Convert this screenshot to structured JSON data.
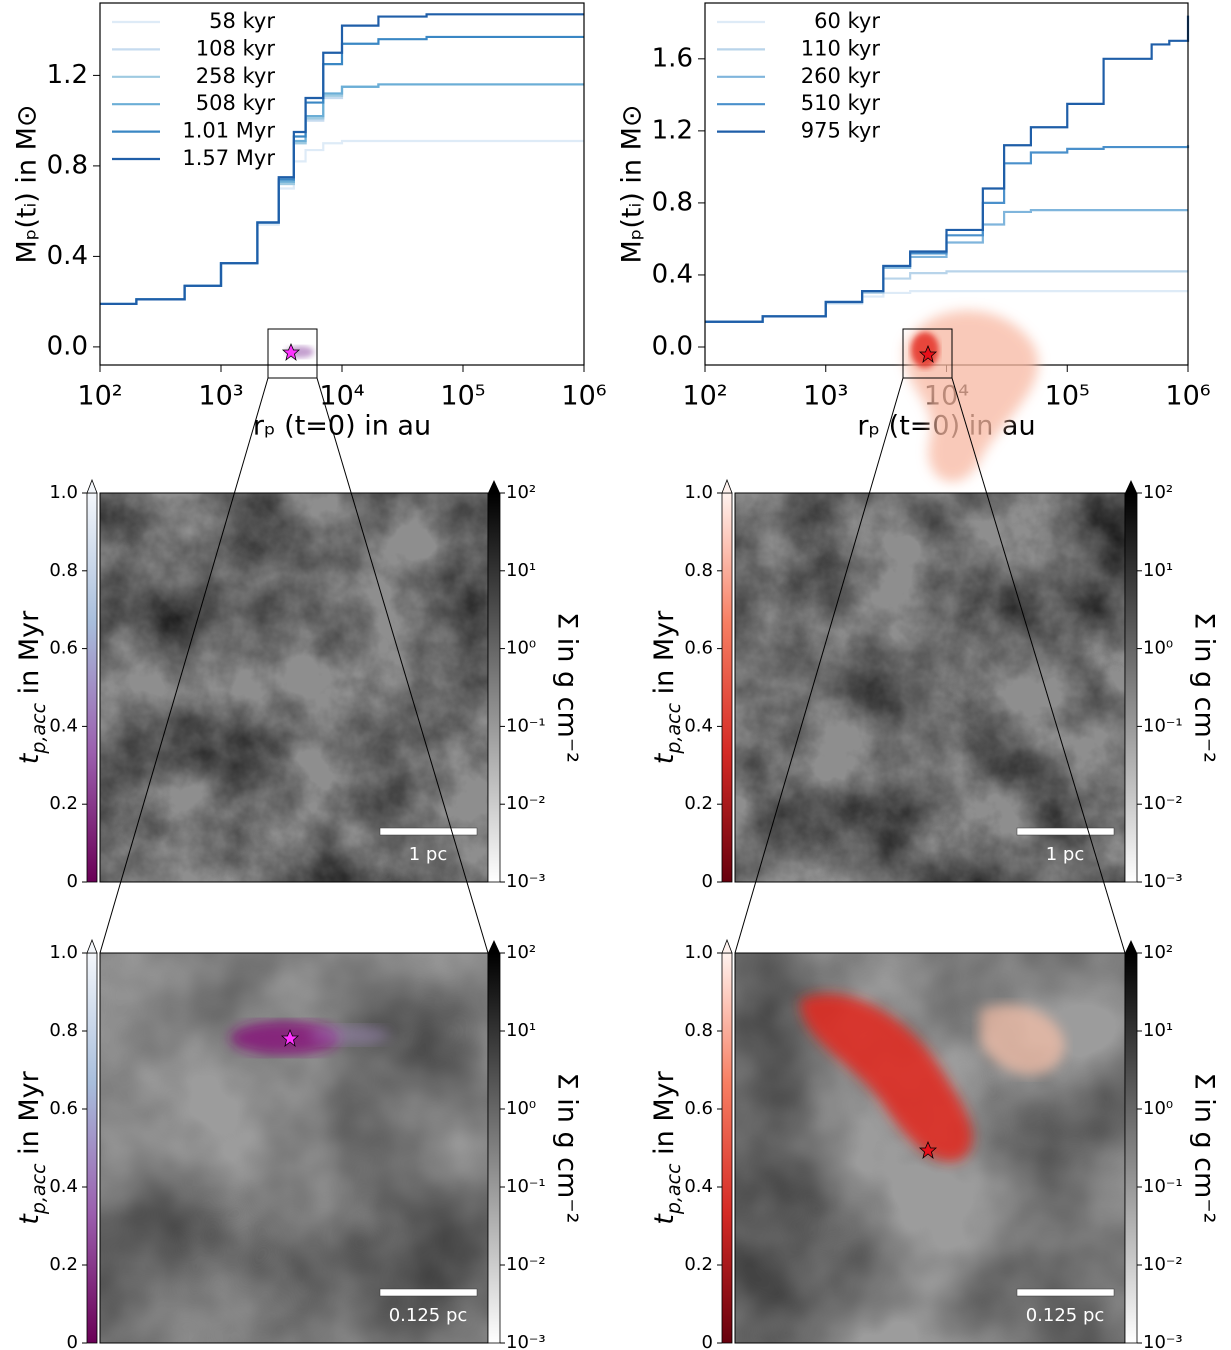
{
  "chart_data": [
    {
      "type": "line",
      "xlabel": "rₚ (t=0) in au",
      "ylabel": "Mₚ(tᵢ) in M⊙",
      "xscale": "log",
      "xlim": [
        100,
        1000000
      ],
      "xticks": [
        {
          "value": 100,
          "label": "10²"
        },
        {
          "value": 1000,
          "label": "10³"
        },
        {
          "value": 10000,
          "label": "10⁴"
        },
        {
          "value": 100000,
          "label": "10⁵"
        },
        {
          "value": 1000000,
          "label": "10⁶"
        }
      ],
      "ylim": [
        -0.08,
        1.52
      ],
      "yticks": [
        {
          "value": 0,
          "label": "0.0"
        },
        0.4,
        0.8,
        1.2
      ],
      "legend": "upper left",
      "x": [
        100,
        200,
        500,
        1000,
        2000,
        3000,
        4000,
        5000,
        7000,
        10000,
        20000,
        50000,
        100000,
        1000000
      ],
      "series": [
        {
          "name": "58 kyr",
          "color": "#deebf7",
          "values": [
            0.19,
            0.21,
            0.27,
            0.37,
            0.54,
            0.7,
            0.82,
            0.87,
            0.9,
            0.91,
            0.91,
            0.91,
            0.91,
            0.91
          ]
        },
        {
          "name": "108 kyr",
          "color": "#c6dbef",
          "values": [
            0.19,
            0.21,
            0.27,
            0.37,
            0.55,
            0.72,
            0.9,
            1.0,
            1.1,
            1.15,
            1.16,
            1.16,
            1.16,
            1.16
          ]
        },
        {
          "name": "258 kyr",
          "color": "#9ecae1",
          "values": [
            0.19,
            0.21,
            0.27,
            0.37,
            0.55,
            0.72,
            0.9,
            1.01,
            1.11,
            1.15,
            1.16,
            1.16,
            1.16,
            1.16
          ]
        },
        {
          "name": "508 kyr",
          "color": "#6baed6",
          "values": [
            0.19,
            0.21,
            0.27,
            0.37,
            0.55,
            0.73,
            0.91,
            1.02,
            1.12,
            1.15,
            1.16,
            1.16,
            1.16,
            1.16
          ]
        },
        {
          "name": "1.01 Myr",
          "color": "#3a87c4",
          "values": [
            0.19,
            0.21,
            0.27,
            0.37,
            0.55,
            0.74,
            0.93,
            1.08,
            1.25,
            1.34,
            1.36,
            1.37,
            1.37,
            1.37
          ]
        },
        {
          "name": "1.57 Myr",
          "color": "#1f5ea8",
          "values": [
            0.19,
            0.21,
            0.27,
            0.37,
            0.55,
            0.75,
            0.95,
            1.1,
            1.3,
            1.42,
            1.46,
            1.47,
            1.47,
            1.47
          ]
        }
      ]
    },
    {
      "type": "line",
      "xlabel": "rₚ (t=0) in au",
      "ylabel": "Mₚ(tᵢ) in M⊙",
      "xscale": "log",
      "xlim": [
        100,
        1000000
      ],
      "xticks": [
        {
          "value": 100,
          "label": "10²"
        },
        {
          "value": 1000,
          "label": "10³"
        },
        {
          "value": 10000,
          "label": "10⁴"
        },
        {
          "value": 100000,
          "label": "10⁵"
        },
        {
          "value": 1000000,
          "label": "10⁶"
        }
      ],
      "ylim": [
        -0.1,
        1.91
      ],
      "yticks": [
        {
          "value": 0,
          "label": "0.0"
        },
        0.4,
        0.8,
        1.2,
        1.6
      ],
      "legend": "upper left",
      "x": [
        100,
        300,
        1000,
        2000,
        3000,
        5000,
        10000,
        20000,
        30000,
        50000,
        100000,
        200000,
        500000,
        700000,
        1000000
      ],
      "series": [
        {
          "name": "60 kyr",
          "color": "#deebf7",
          "values": [
            0.14,
            0.17,
            0.24,
            0.28,
            0.3,
            0.31,
            0.31,
            0.31,
            0.31,
            0.31,
            0.31,
            0.31,
            0.31,
            0.31,
            0.31
          ]
        },
        {
          "name": "110 kyr",
          "color": "#b8d4ea",
          "values": [
            0.14,
            0.17,
            0.25,
            0.3,
            0.38,
            0.41,
            0.42,
            0.42,
            0.42,
            0.42,
            0.42,
            0.42,
            0.42,
            0.42,
            0.42
          ]
        },
        {
          "name": "260 kyr",
          "color": "#7fb5dc",
          "values": [
            0.14,
            0.17,
            0.25,
            0.31,
            0.44,
            0.5,
            0.58,
            0.68,
            0.75,
            0.76,
            0.76,
            0.76,
            0.76,
            0.76,
            0.76
          ]
        },
        {
          "name": "510 kyr",
          "color": "#4a90cb",
          "values": [
            0.14,
            0.17,
            0.25,
            0.31,
            0.45,
            0.52,
            0.62,
            0.8,
            1.02,
            1.08,
            1.1,
            1.11,
            1.11,
            1.11,
            1.12
          ]
        },
        {
          "name": "975 kyr",
          "color": "#1f5ea8",
          "values": [
            0.14,
            0.17,
            0.25,
            0.31,
            0.45,
            0.53,
            0.65,
            0.88,
            1.12,
            1.22,
            1.35,
            1.6,
            1.68,
            1.7,
            1.84
          ]
        }
      ]
    },
    {
      "type": "map",
      "cbar_label": {
        "main": "t",
        "sub": "p,acc",
        "rest": " in Myr"
      },
      "cbar_lim": [
        0,
        1
      ],
      "cbar_ticks": [
        0,
        0.2,
        0.4,
        0.6,
        0.8,
        {
          "value": 1,
          "label": "1.0"
        }
      ],
      "cbar_colors": [
        "#6a0056",
        "#9b5fae",
        "#a8bedc",
        "#f4f7fb"
      ],
      "sigma_label": "Σ in g cm⁻²",
      "sigma_scale": "log",
      "sigma_lim": [
        0.001,
        100
      ],
      "sigma_ticks": [
        {
          "value": 0.001,
          "label": "10⁻³"
        },
        {
          "value": 0.01,
          "label": "10⁻²"
        },
        {
          "value": 0.1,
          "label": "10⁻¹"
        },
        {
          "value": 1,
          "label": "10⁰"
        },
        {
          "value": 10,
          "label": "10¹"
        },
        {
          "value": 100,
          "label": "10²"
        }
      ],
      "scale_label": "1 pc",
      "marker_color": "#ff33ff"
    },
    {
      "type": "map",
      "cbar_label": {
        "main": "t",
        "sub": "p,acc",
        "rest": " in Myr"
      },
      "cbar_lim": [
        0,
        1
      ],
      "cbar_ticks": [
        0,
        0.2,
        0.4,
        0.6,
        0.8,
        {
          "value": 1,
          "label": "1.0"
        }
      ],
      "cbar_colors": [
        "#67000d",
        "#d42a25",
        "#f77e62",
        "#fff2ee"
      ],
      "sigma_label": "Σ in g cm⁻²",
      "sigma_scale": "log",
      "sigma_lim": [
        0.001,
        100
      ],
      "sigma_ticks": [
        {
          "value": 0.001,
          "label": "10⁻³"
        },
        {
          "value": 0.01,
          "label": "10⁻²"
        },
        {
          "value": 0.1,
          "label": "10⁻¹"
        },
        {
          "value": 1,
          "label": "10⁰"
        },
        {
          "value": 10,
          "label": "10¹"
        },
        {
          "value": 100,
          "label": "10²"
        }
      ],
      "scale_label": "1 pc",
      "marker_color": "#e8101a"
    },
    {
      "type": "map",
      "cbar_label": {
        "main": "t",
        "sub": "p,acc",
        "rest": " in Myr"
      },
      "cbar_lim": [
        0,
        1
      ],
      "cbar_ticks": [
        0,
        0.2,
        0.4,
        0.6,
        0.8,
        {
          "value": 1,
          "label": "1.0"
        }
      ],
      "cbar_colors": [
        "#6a0056",
        "#9b5fae",
        "#a8bedc",
        "#f4f7fb"
      ],
      "sigma_label": "Σ in g cm⁻²",
      "sigma_scale": "log",
      "sigma_lim": [
        0.001,
        100
      ],
      "sigma_ticks": [
        {
          "value": 0.001,
          "label": "10⁻³"
        },
        {
          "value": 0.01,
          "label": "10⁻²"
        },
        {
          "value": 0.1,
          "label": "10⁻¹"
        },
        {
          "value": 1,
          "label": "10⁰"
        },
        {
          "value": 10,
          "label": "10¹"
        },
        {
          "value": 100,
          "label": "10²"
        }
      ],
      "scale_label": "0.125 pc",
      "marker_color": "#ff33ff"
    },
    {
      "type": "map",
      "cbar_label": {
        "main": "t",
        "sub": "p,acc",
        "rest": " in Myr"
      },
      "cbar_lim": [
        0,
        1
      ],
      "cbar_ticks": [
        0,
        0.2,
        0.4,
        0.6,
        0.8,
        {
          "value": 1,
          "label": "1.0"
        }
      ],
      "cbar_colors": [
        "#67000d",
        "#d42a25",
        "#f77e62",
        "#fff2ee"
      ],
      "sigma_label": "Σ in g cm⁻²",
      "sigma_scale": "log",
      "sigma_lim": [
        0.001,
        100
      ],
      "sigma_ticks": [
        {
          "value": 0.001,
          "label": "10⁻³"
        },
        {
          "value": 0.01,
          "label": "10⁻²"
        },
        {
          "value": 0.1,
          "label": "10⁻¹"
        },
        {
          "value": 1,
          "label": "10⁰"
        },
        {
          "value": 10,
          "label": "10¹"
        },
        {
          "value": 100,
          "label": "10²"
        }
      ],
      "scale_label": "0.125 pc",
      "marker_color": "#e8101a"
    }
  ]
}
